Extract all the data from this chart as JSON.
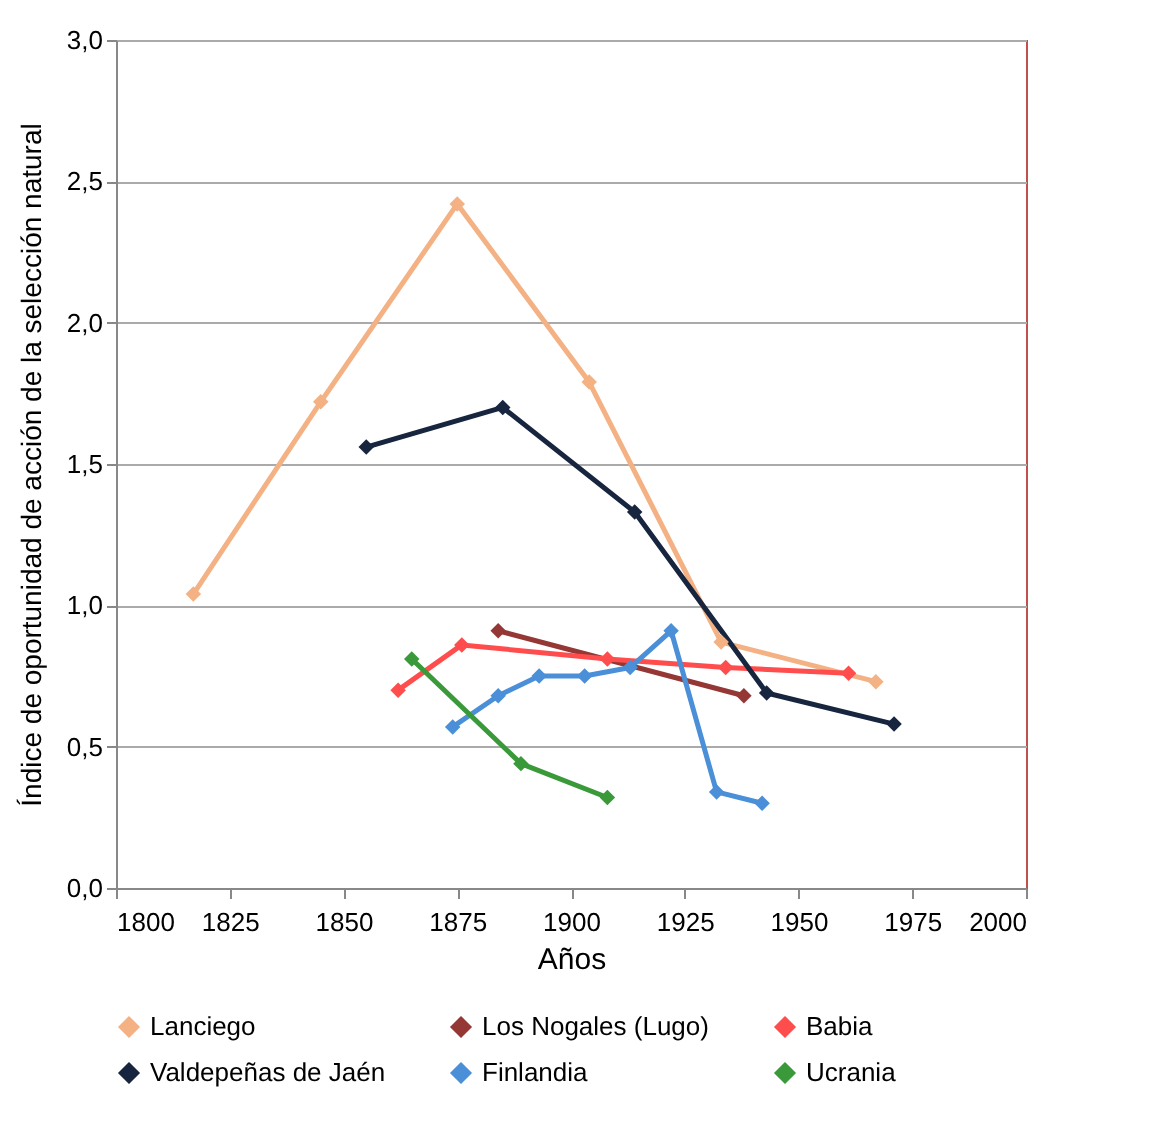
{
  "chart_data": {
    "type": "line",
    "xlabel": "Años",
    "ylabel": "Índice de oportunidad de acción de la selección natural",
    "xlim": [
      1800,
      2000
    ],
    "xticks": [
      1800,
      1825,
      1850,
      1875,
      1900,
      1925,
      1950,
      1975,
      2000
    ],
    "ylim": [
      0,
      3
    ],
    "yticks": [
      {
        "value": 0,
        "label": "0,0"
      },
      {
        "value": 0.5,
        "label": "0,5"
      },
      {
        "value": 1,
        "label": "1,0"
      },
      {
        "value": 1.5,
        "label": "1,5"
      },
      {
        "value": 2,
        "label": "2,0"
      },
      {
        "value": 2.5,
        "label": "2,5"
      },
      {
        "value": 3,
        "label": "3,0"
      }
    ],
    "grid": "y",
    "legend": "bottom",
    "marker": "diamond",
    "line_style": "solid",
    "series": [
      {
        "name": "Lanciego",
        "color": "#f4b183",
        "x": [
          1817,
          1845,
          1875,
          1904,
          1933,
          1967
        ],
        "values": [
          1.04,
          1.72,
          2.42,
          1.79,
          0.87,
          0.73
        ]
      },
      {
        "name": "Los Nogales (Lugo)",
        "color": "#953735",
        "x": [
          1884,
          1938
        ],
        "values": [
          0.91,
          0.68
        ]
      },
      {
        "name": "Babia",
        "color": "#ff4d4d",
        "x": [
          1862,
          1876,
          1908,
          1934,
          1961
        ],
        "values": [
          0.7,
          0.86,
          0.81,
          0.78,
          0.76
        ]
      },
      {
        "name": "Valdepeñas de Jaén",
        "color": "#17253f",
        "x": [
          1855,
          1885,
          1914,
          1943,
          1971
        ],
        "values": [
          1.56,
          1.7,
          1.33,
          0.69,
          0.58
        ]
      },
      {
        "name": "Finlandia",
        "color": "#4a8fd8",
        "x": [
          1874,
          1884,
          1893,
          1903,
          1913,
          1922,
          1932,
          1942
        ],
        "values": [
          0.57,
          0.68,
          0.75,
          0.75,
          0.78,
          0.91,
          0.34,
          0.3
        ]
      },
      {
        "name": "Ucrania",
        "color": "#3a9a3a",
        "x": [
          1865,
          1889,
          1908
        ],
        "values": [
          0.81,
          0.44,
          0.32
        ]
      }
    ]
  }
}
